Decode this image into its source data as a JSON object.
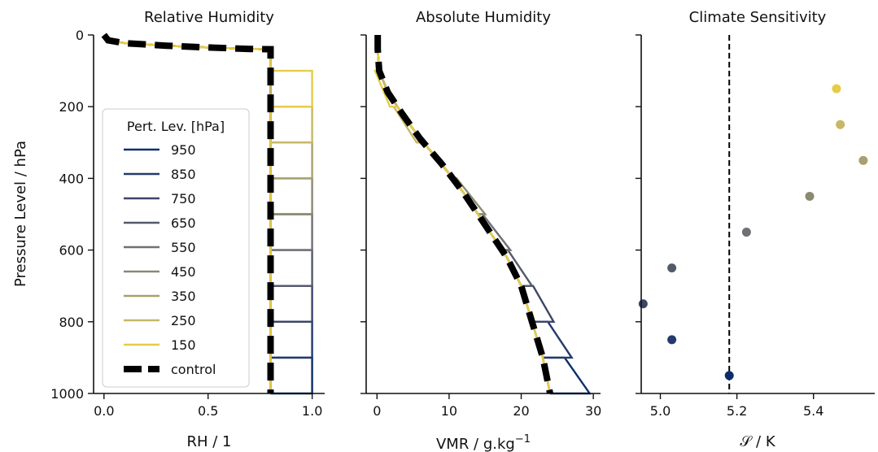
{
  "chart_data": [
    {
      "type": "line",
      "title": "Relative Humidity",
      "xlabel": "RH / 1",
      "ylabel": "Pressure Level / hPa",
      "xlim": [
        -0.05,
        1.06
      ],
      "ylim": [
        1000,
        0
      ],
      "xticks": [
        "0.0",
        "0.5",
        "1.0"
      ],
      "xtick_values": [
        0,
        0.5,
        1.0
      ],
      "yticks": [
        "0",
        "200",
        "400",
        "600",
        "800",
        "1000"
      ],
      "ytick_values": [
        0,
        200,
        400,
        600,
        800,
        1000
      ],
      "legend": {
        "title": "Pert. Lev. [hPa]",
        "placement": "center-left",
        "entries": [
          "950",
          "850",
          "750",
          "650",
          "550",
          "450",
          "350",
          "250",
          "150",
          "control"
        ]
      },
      "control": {
        "name": "control",
        "points": [
          [
            0.0,
            0
          ],
          [
            0.02,
            15
          ],
          [
            0.1,
            23
          ],
          [
            0.3,
            30
          ],
          [
            0.5,
            35
          ],
          [
            0.7,
            39
          ],
          [
            0.8,
            40
          ],
          [
            0.8,
            1000
          ]
        ]
      },
      "perturbation_amplitude": 0.2,
      "series": [
        {
          "name": "950",
          "level": 950,
          "color": "#0b2e6b"
        },
        {
          "name": "850",
          "level": 850,
          "color": "#243a6a"
        },
        {
          "name": "750",
          "level": 750,
          "color": "#3c4667"
        },
        {
          "name": "650",
          "level": 650,
          "color": "#555a6a"
        },
        {
          "name": "550",
          "level": 550,
          "color": "#707075"
        },
        {
          "name": "450",
          "level": 450,
          "color": "#8c8972"
        },
        {
          "name": "350",
          "level": 350,
          "color": "#a9a06f"
        },
        {
          "name": "250",
          "level": 250,
          "color": "#c8b764"
        },
        {
          "name": "150",
          "level": 150,
          "color": "#e6cc48"
        }
      ]
    },
    {
      "type": "line",
      "title": "Absolute Humidity",
      "xlabel": "VMR / g.kg",
      "xlabel_sup": "−1",
      "xlim": [
        -1.5,
        31
      ],
      "ylim": [
        1000,
        0
      ],
      "xticks": [
        "0",
        "10",
        "20",
        "30"
      ],
      "xtick_values": [
        0,
        10,
        20,
        30
      ],
      "control": {
        "name": "control",
        "points": [
          [
            0.1,
            0
          ],
          [
            0.1,
            40
          ],
          [
            0.3,
            100
          ],
          [
            1.5,
            160
          ],
          [
            3.5,
            220
          ],
          [
            6,
            290
          ],
          [
            9,
            360
          ],
          [
            12,
            440
          ],
          [
            15,
            530
          ],
          [
            18,
            620
          ],
          [
            20,
            700
          ],
          [
            21.5,
            800
          ],
          [
            23,
            900
          ],
          [
            24,
            1000
          ]
        ]
      },
      "series": [
        {
          "name": "950",
          "level": 950,
          "peak": 29.5
        },
        {
          "name": "850",
          "level": 850,
          "peak": 27.0
        },
        {
          "name": "750",
          "level": 750,
          "peak": 24.5
        },
        {
          "name": "650",
          "level": 650,
          "peak": 21.5
        },
        {
          "name": "550",
          "level": 550,
          "peak": 18.5
        },
        {
          "name": "450",
          "level": 450,
          "peak": 15.0
        },
        {
          "name": "350",
          "level": 350,
          "peak": 10.5
        },
        {
          "name": "250",
          "level": 250,
          "peak": 5.5
        },
        {
          "name": "150",
          "level": 150,
          "peak": 1.8
        }
      ]
    },
    {
      "type": "scatter",
      "title": "Climate Sensitivity",
      "xlabel": "𝒮 / K",
      "xlim": [
        4.95,
        5.56
      ],
      "ylim": [
        1000,
        0
      ],
      "xticks": [
        "5.0",
        "5.2",
        "5.4"
      ],
      "xtick_values": [
        5.0,
        5.2,
        5.4
      ],
      "reference_line": {
        "x": 5.18,
        "style": "dashed"
      },
      "points": [
        {
          "name": "950",
          "x": 5.18,
          "y": 950
        },
        {
          "name": "850",
          "x": 5.03,
          "y": 850
        },
        {
          "name": "750",
          "x": 4.955,
          "y": 750
        },
        {
          "name": "650",
          "x": 5.03,
          "y": 650
        },
        {
          "name": "550",
          "x": 5.225,
          "y": 550
        },
        {
          "name": "450",
          "x": 5.39,
          "y": 450
        },
        {
          "name": "350",
          "x": 5.53,
          "y": 350
        },
        {
          "name": "250",
          "x": 5.47,
          "y": 250
        },
        {
          "name": "150",
          "x": 5.46,
          "y": 150
        }
      ]
    }
  ]
}
